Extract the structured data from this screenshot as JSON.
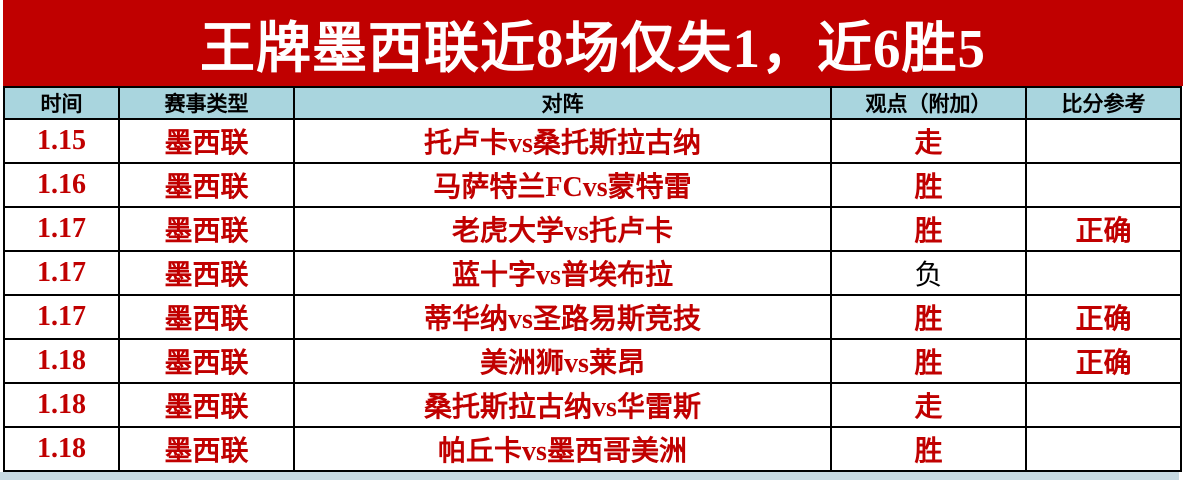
{
  "banner": {
    "title": "王牌墨西联近8场仅失1，近6胜5"
  },
  "chart_data": {
    "type": "table",
    "title": "王牌墨西联近8场仅失1，近6胜5",
    "columns": [
      "时间",
      "赛事类型",
      "对阵",
      "观点（附加）",
      "比分参考"
    ],
    "rows": [
      {
        "date": "1.15",
        "league": "墨西联",
        "match": "托卢卡vs桑托斯拉古纳",
        "opinion": "走",
        "highlight": true,
        "result": ""
      },
      {
        "date": "1.16",
        "league": "墨西联",
        "match": "马萨特兰FCvs蒙特雷",
        "opinion": "胜",
        "highlight": true,
        "result": ""
      },
      {
        "date": "1.17",
        "league": "墨西联",
        "match": "老虎大学vs托卢卡",
        "opinion": "胜",
        "highlight": true,
        "result": "正确"
      },
      {
        "date": "1.17",
        "league": "墨西联",
        "match": "蓝十字vs普埃布拉",
        "opinion": "负",
        "highlight": false,
        "result": ""
      },
      {
        "date": "1.17",
        "league": "墨西联",
        "match": "蒂华纳vs圣路易斯竞技",
        "opinion": "胜",
        "highlight": true,
        "result": "正确"
      },
      {
        "date": "1.18",
        "league": "墨西联",
        "match": "美洲狮vs莱昂",
        "opinion": "胜",
        "highlight": true,
        "result": "正确"
      },
      {
        "date": "1.18",
        "league": "墨西联",
        "match": "桑托斯拉古纳vs华雷斯",
        "opinion": "走",
        "highlight": true,
        "result": ""
      },
      {
        "date": "1.18",
        "league": "墨西联",
        "match": "帕丘卡vs墨西哥美洲",
        "opinion": "胜",
        "highlight": true,
        "result": ""
      }
    ],
    "colors": {
      "banner_bg": "#c00000",
      "banner_text": "#ffffff",
      "header_bg": "#a9d5de",
      "header_text": "#000000",
      "cell_text_red": "#c00000",
      "neutral_opinion_text": "#000000",
      "highlight_bg": "#ffff00",
      "border": "#000000",
      "bottom_strip": "#c7d9e1"
    }
  }
}
